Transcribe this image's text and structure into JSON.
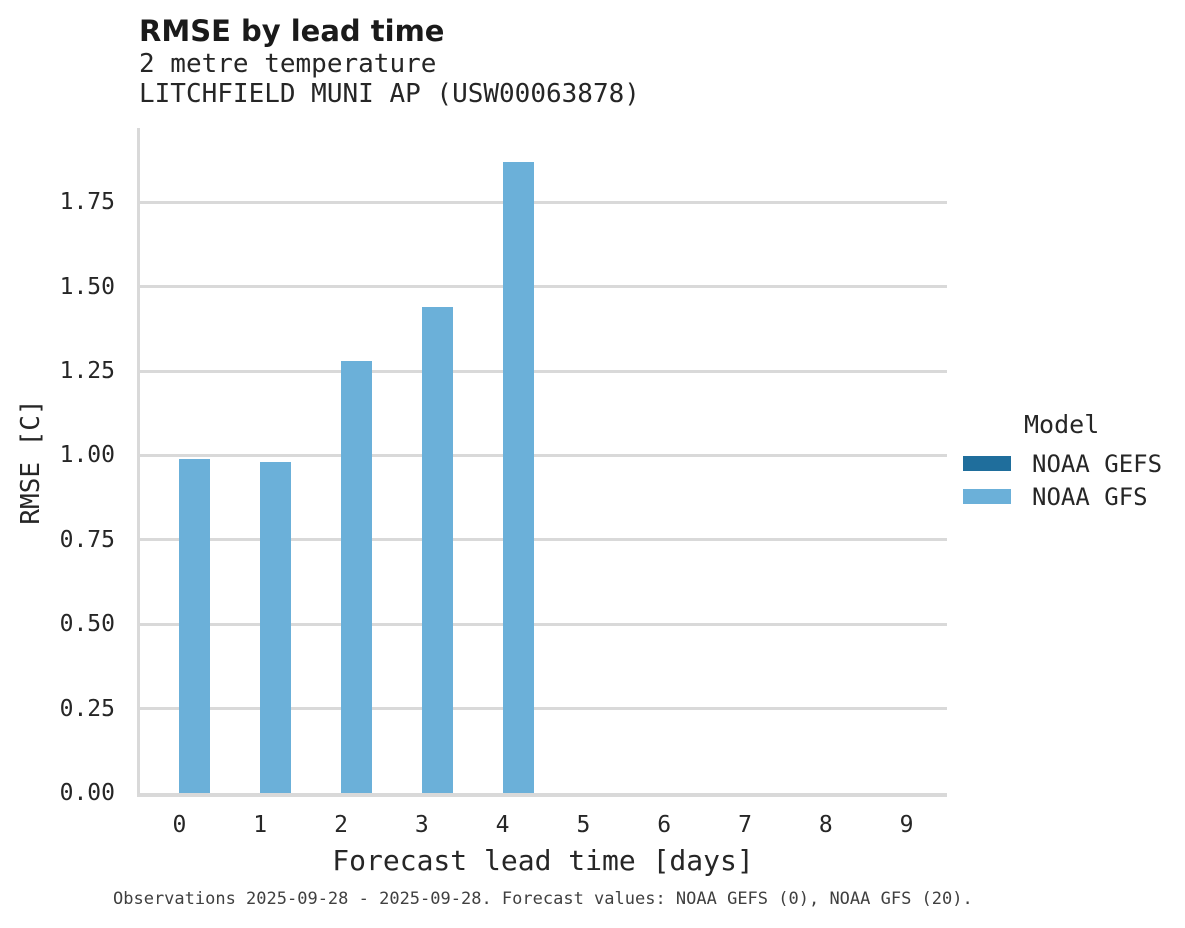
{
  "chart_data": {
    "type": "bar",
    "title": "RMSE by lead time",
    "subtitle_lines": [
      "2 metre temperature",
      "LITCHFIELD MUNI AP (USW00063878)"
    ],
    "xlabel": "Forecast lead time [days]",
    "ylabel": "RMSE [C]",
    "categories": [
      "0",
      "1",
      "2",
      "3",
      "4",
      "5",
      "6",
      "7",
      "8",
      "9"
    ],
    "series": [
      {
        "name": "NOAA GEFS",
        "color": "#1f6e9c",
        "values": [
          null,
          null,
          null,
          null,
          null,
          null,
          null,
          null,
          null,
          null
        ]
      },
      {
        "name": "NOAA GFS",
        "color": "#6bb0d9",
        "values": [
          0.99,
          0.98,
          1.28,
          1.44,
          1.87,
          null,
          null,
          null,
          null,
          null
        ]
      }
    ],
    "y_tick_values": [
      0,
      0.25,
      0.5,
      0.75,
      1.0,
      1.25,
      1.5,
      1.75
    ],
    "y_tick_labels": [
      "0.00",
      "0.25",
      "0.50",
      "0.75",
      "1.00",
      "1.25",
      "1.50",
      "1.75"
    ],
    "ylim": [
      0,
      1.97
    ],
    "grid": true,
    "legend": {
      "title": "Model",
      "position": "right"
    },
    "caption": "Observations 2025-09-28 - 2025-09-28. Forecast values: NOAA GEFS (0), NOAA GFS (20)."
  },
  "colors": {
    "background": "#ffffff",
    "grid": "#d9d9d9",
    "axis": "#d9d9d9",
    "text": "#262626",
    "title": "#1a1a1a",
    "caption": "#404040"
  }
}
